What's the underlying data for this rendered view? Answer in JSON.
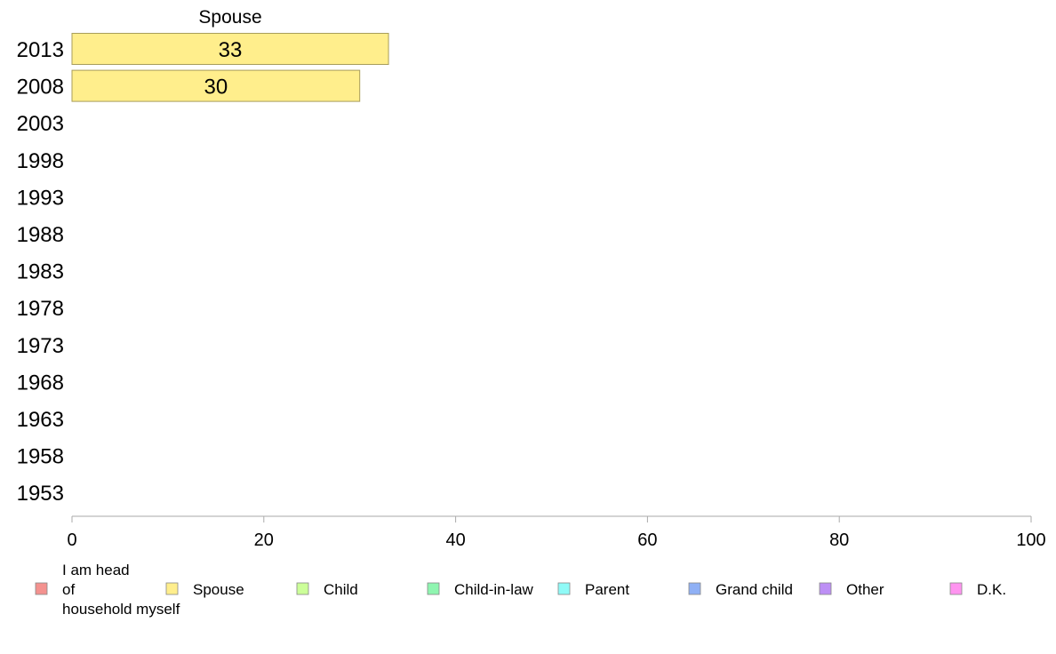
{
  "chart_data": {
    "type": "bar",
    "orientation": "horizontal",
    "stacked": true,
    "title": "",
    "xlabel": "",
    "ylabel": "",
    "xlim": [
      0,
      100
    ],
    "x_ticks": [
      "0",
      "20",
      "40",
      "60",
      "80",
      "100"
    ],
    "categories": [
      "2013",
      "2008",
      "2003",
      "1998",
      "1993",
      "1988",
      "1983",
      "1978",
      "1973",
      "1968",
      "1963",
      "1958",
      "1953"
    ],
    "series": [
      {
        "name": "I am head of household myself",
        "color": "#f4928f",
        "values": [
          null,
          null,
          null,
          null,
          null,
          null,
          null,
          null,
          null,
          null,
          null,
          null,
          null
        ]
      },
      {
        "name": "Spouse",
        "color": "#ffee8c",
        "values": [
          33,
          30,
          null,
          null,
          null,
          null,
          null,
          null,
          null,
          null,
          null,
          null,
          null
        ]
      },
      {
        "name": "Child",
        "color": "#ccff99",
        "values": [
          null,
          null,
          null,
          null,
          null,
          null,
          null,
          null,
          null,
          null,
          null,
          null,
          null
        ]
      },
      {
        "name": "Child-in-law",
        "color": "#8ff5b0",
        "values": [
          null,
          null,
          null,
          null,
          null,
          null,
          null,
          null,
          null,
          null,
          null,
          null,
          null
        ]
      },
      {
        "name": "Parent",
        "color": "#8ffaf7",
        "values": [
          null,
          null,
          null,
          null,
          null,
          null,
          null,
          null,
          null,
          null,
          null,
          null,
          null
        ]
      },
      {
        "name": "Grand child",
        "color": "#8fb0f5",
        "values": [
          null,
          null,
          null,
          null,
          null,
          null,
          null,
          null,
          null,
          null,
          null,
          null,
          null
        ]
      },
      {
        "name": "Other",
        "color": "#bd8ff5",
        "values": [
          null,
          null,
          null,
          null,
          null,
          null,
          null,
          null,
          null,
          null,
          null,
          null,
          null
        ]
      },
      {
        "name": "D.K.",
        "color": "#ff94f0",
        "values": [
          null,
          null,
          null,
          null,
          null,
          null,
          null,
          null,
          null,
          null,
          null,
          null,
          null
        ]
      }
    ],
    "series_header": "Spouse",
    "legend_position": "bottom",
    "grid": false
  }
}
